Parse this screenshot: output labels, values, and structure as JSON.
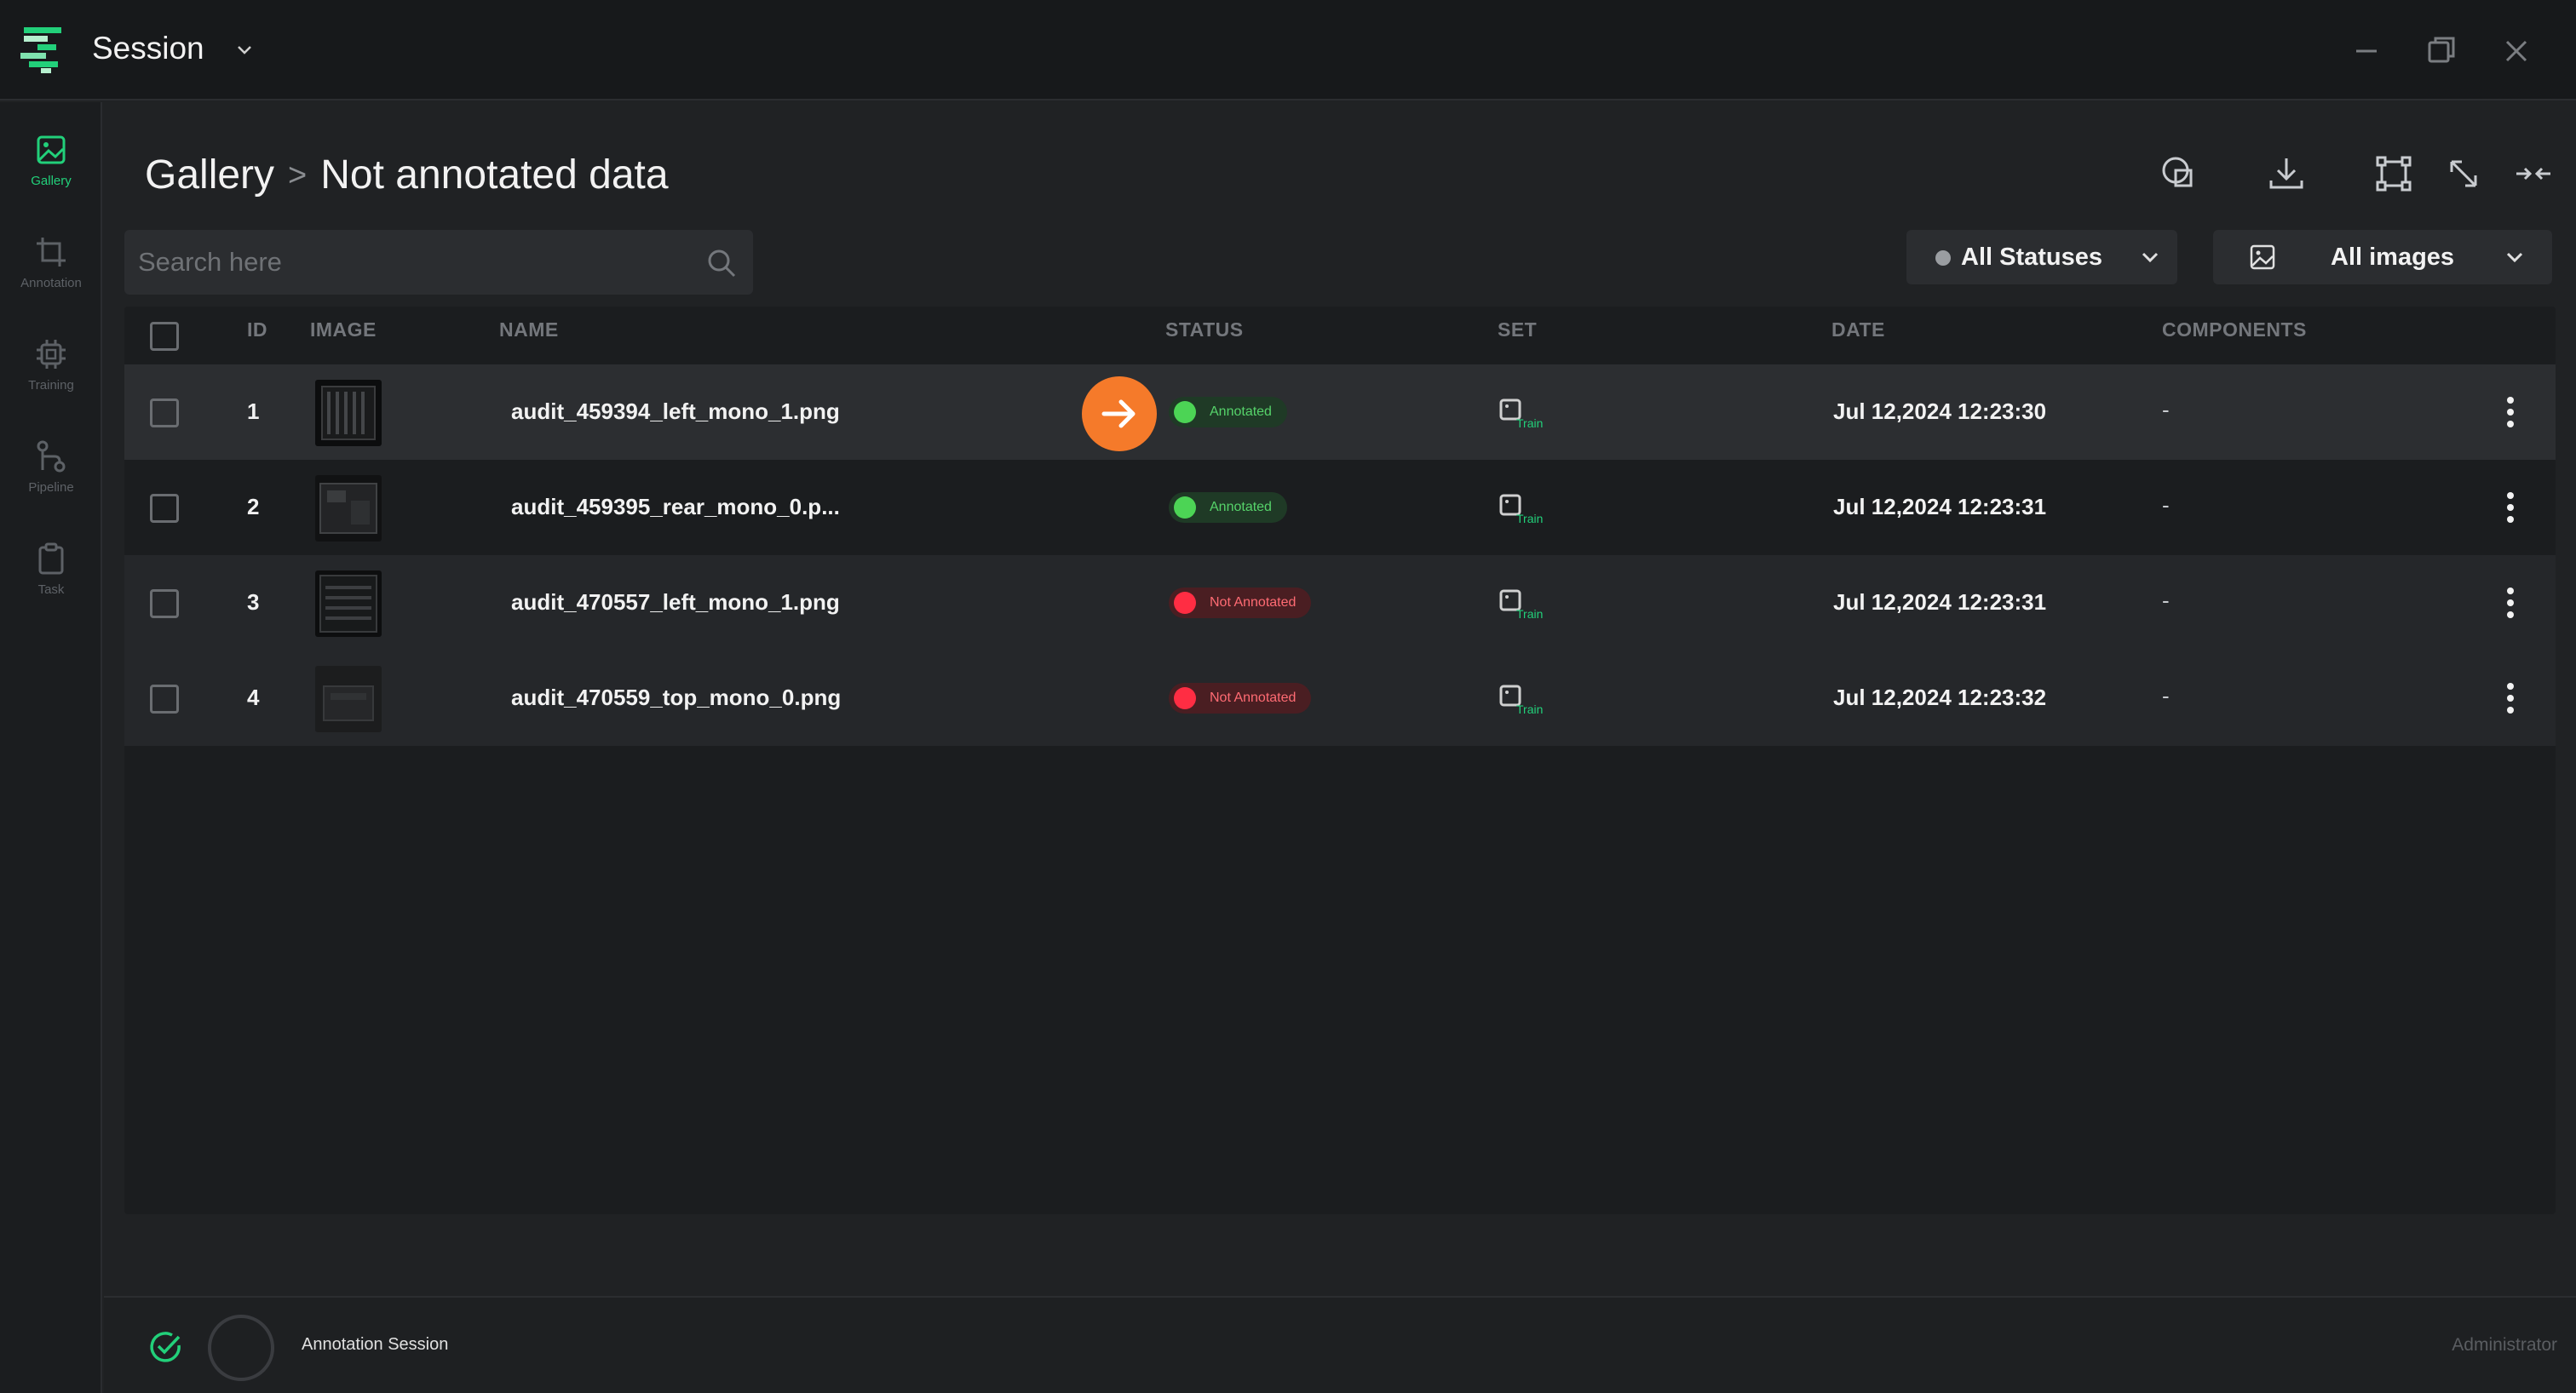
{
  "app": {
    "title": "Session"
  },
  "sidebar": {
    "items": [
      {
        "label": "Gallery",
        "icon": "gallery-icon",
        "active": true
      },
      {
        "label": "Annotation",
        "icon": "crop-icon"
      },
      {
        "label": "Training",
        "icon": "chip-icon"
      },
      {
        "label": "Pipeline",
        "icon": "pipeline-icon"
      },
      {
        "label": "Task",
        "icon": "clipboard-icon"
      }
    ]
  },
  "breadcrumb": {
    "root": "Gallery",
    "separator": ">",
    "current": "Not annotated data"
  },
  "search": {
    "placeholder": "Search here",
    "value": ""
  },
  "filters": {
    "status": "All Statuses",
    "images": "All images"
  },
  "table": {
    "columns": [
      "ID",
      "IMAGE",
      "NAME",
      "STATUS",
      "SET",
      "DATE",
      "COMPONENTS"
    ],
    "rows": [
      {
        "id": "1",
        "name": "audit_459394_left_mono_1.png",
        "status": "Annotated",
        "set": "Train",
        "date": "Jul 12,2024 12:23:30",
        "components": "-"
      },
      {
        "id": "2",
        "name": "audit_459395_rear_mono_0.p...",
        "status": "Annotated",
        "set": "Train",
        "date": "Jul 12,2024 12:23:31",
        "components": "-"
      },
      {
        "id": "3",
        "name": "audit_470557_left_mono_1.png",
        "status": "Not Annotated",
        "set": "Train",
        "date": "Jul 12,2024 12:23:31",
        "components": "-"
      },
      {
        "id": "4",
        "name": "audit_470559_top_mono_0.png",
        "status": "Not Annotated",
        "set": "Train",
        "date": "Jul 12,2024 12:23:32",
        "components": "-"
      }
    ]
  },
  "footer": {
    "session": "Annotation Session",
    "user": "Administrator"
  },
  "colors": {
    "accent": "#22d07a",
    "annotated": "#4cd455",
    "not_annotated": "#ff2d43",
    "pointer": "#f57a2a"
  }
}
